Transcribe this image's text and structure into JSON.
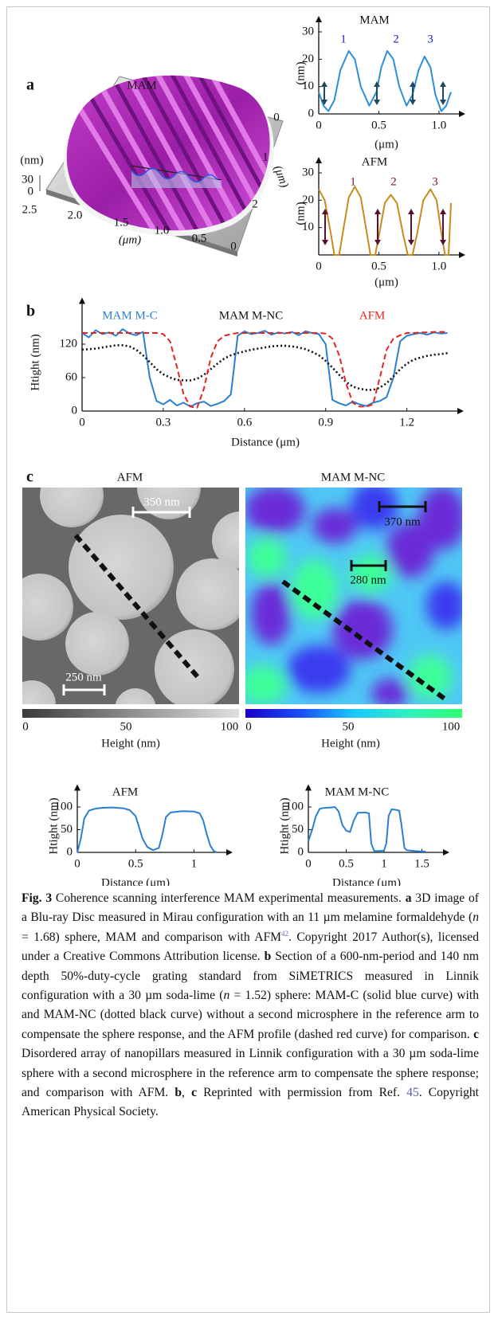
{
  "panel_labels": [
    "a",
    "b",
    "c"
  ],
  "panel_a_3d": {
    "title": "MAM",
    "z_label": "(nm)",
    "z_ticks": [
      "30",
      "0"
    ],
    "x_ticks": [
      "2.5",
      "2.0",
      "1.5",
      "1.0",
      "0.5",
      "0"
    ],
    "x_label": "(μm)",
    "y_ticks": [
      "0",
      "1",
      "2"
    ],
    "y_label": "(μm)"
  },
  "chart_data": [
    {
      "type": "line",
      "title": "MAM",
      "x_label": "(μm)",
      "y_label": "(nm)",
      "xlim": [
        0,
        1.1
      ],
      "ylim": [
        0,
        30
      ],
      "xticks": [
        0,
        0.5,
        {
          "value": 1,
          "label": "1.0"
        }
      ],
      "yticks": [
        0,
        10,
        20,
        30
      ],
      "x": [
        0,
        0.04,
        0.08,
        0.13,
        0.18,
        0.25,
        0.3,
        0.35,
        0.42,
        0.48,
        0.52,
        0.57,
        0.62,
        0.67,
        0.73,
        0.78,
        0.83,
        0.88,
        0.93,
        0.97,
        1.02,
        1.06,
        1.1
      ],
      "series": [
        {
          "color": "#2a8fdc",
          "style": "solid",
          "values": [
            8,
            3,
            1,
            5,
            16,
            23,
            20,
            10,
            3,
            8,
            17,
            23,
            20,
            10,
            3,
            7,
            16,
            21,
            17,
            7,
            1,
            3,
            8
          ]
        }
      ],
      "annotations": [
        "1",
        "2",
        "3"
      ],
      "annotation_color": "#1b1bd6"
    },
    {
      "type": "line",
      "title": "AFM",
      "x_label": "(μm)",
      "y_label": "(nm)",
      "xlim": [
        0,
        1.1
      ],
      "ylim": [
        0,
        30
      ],
      "xticks": [
        0,
        0.5,
        {
          "value": 1,
          "label": "1.0"
        }
      ],
      "yticks": [
        10,
        20,
        30
      ],
      "x": [
        0,
        0.05,
        0.1,
        0.13,
        0.17,
        0.2,
        0.25,
        0.3,
        0.35,
        0.4,
        0.43,
        0.47,
        0.5,
        0.55,
        0.6,
        0.65,
        0.7,
        0.74,
        0.78,
        0.82,
        0.87,
        0.93,
        0.98,
        1.02,
        1.05,
        1.08,
        1.1
      ],
      "series": [
        {
          "color": "#c98a1c",
          "style": "solid",
          "values": [
            24,
            20,
            8,
            0,
            0,
            8,
            21,
            25,
            21,
            8,
            0,
            0,
            7,
            19,
            22,
            19,
            8,
            0,
            0,
            8,
            20,
            24,
            20,
            8,
            0,
            0,
            19
          ]
        }
      ],
      "annotations": [
        "1",
        "2",
        "3"
      ],
      "annotation_color": "#7a1040"
    },
    {
      "type": "line",
      "x_label": "Distance (μm)",
      "y_label": "Htight (nm)",
      "xlim": [
        0,
        1.36
      ],
      "ylim": [
        0,
        175
      ],
      "xticks": [
        0,
        0.3,
        0.6,
        0.9,
        1.2
      ],
      "yticks": [
        0,
        60,
        120
      ],
      "x": [
        0,
        0.025,
        0.05,
        0.075,
        0.1,
        0.125,
        0.15,
        0.175,
        0.2,
        0.225,
        0.25,
        0.275,
        0.3,
        0.325,
        0.35,
        0.375,
        0.4,
        0.425,
        0.45,
        0.475,
        0.5,
        0.525,
        0.55,
        0.575,
        0.6,
        0.625,
        0.65,
        0.675,
        0.7,
        0.725,
        0.75,
        0.775,
        0.8,
        0.825,
        0.85,
        0.875,
        0.9,
        0.925,
        0.95,
        0.975,
        1.0,
        1.025,
        1.05,
        1.075,
        1.1,
        1.125,
        1.15,
        1.175,
        1.2,
        1.225,
        1.25,
        1.275,
        1.3,
        1.325,
        1.35
      ],
      "series": [
        {
          "name": "MAM M-C",
          "color": "#2a7fd0",
          "style": "solid",
          "values": [
            140,
            132,
            145,
            138,
            141,
            135,
            147,
            139,
            136,
            142,
            60,
            18,
            12,
            20,
            10,
            15,
            8,
            14,
            17,
            9,
            13,
            18,
            30,
            135,
            143,
            138,
            140,
            144,
            137,
            141,
            139,
            142,
            136,
            143,
            140,
            138,
            120,
            20,
            14,
            10,
            17,
            12,
            9,
            15,
            18,
            25,
            60,
            125,
            135,
            138,
            140,
            137,
            141,
            139,
            140
          ]
        },
        {
          "name": "MAM M-NC",
          "color": "#111111",
          "style": "dotted",
          "values": [
            110,
            111,
            112,
            114,
            116,
            118,
            118,
            116,
            110,
            100,
            88,
            75,
            66,
            60,
            56,
            55,
            55,
            58,
            65,
            75,
            85,
            94,
            100,
            104,
            107,
            110,
            112,
            114,
            116,
            117,
            117,
            116,
            114,
            111,
            106,
            100,
            90,
            78,
            65,
            52,
            44,
            40,
            38,
            38,
            42,
            50,
            62,
            75,
            85,
            92,
            96,
            99,
            101,
            102,
            104
          ]
        },
        {
          "name": "AFM",
          "color": "#e8231f",
          "style": "dashed",
          "values": [
            140,
            140,
            140,
            140,
            140,
            140,
            140,
            140,
            140,
            140,
            140,
            140,
            138,
            125,
            80,
            30,
            8,
            6,
            40,
            95,
            125,
            135,
            138,
            140,
            140,
            140,
            140,
            140,
            140,
            140,
            140,
            140,
            140,
            140,
            140,
            140,
            139,
            130,
            100,
            50,
            15,
            8,
            8,
            12,
            60,
            110,
            130,
            136,
            140,
            140,
            141,
            141,
            142,
            142,
            142
          ]
        }
      ]
    },
    {
      "type": "line",
      "title": "AFM",
      "x_label": "Distance (μm)",
      "y_label": "Htight (nm)",
      "xlim": [
        0,
        1.25
      ],
      "ylim": [
        0,
        115
      ],
      "xticks": [
        0,
        0.5,
        1
      ],
      "yticks": [
        0,
        50,
        100
      ],
      "x": [
        0,
        0.03,
        0.06,
        0.1,
        0.15,
        0.2,
        0.3,
        0.4,
        0.45,
        0.5,
        0.53,
        0.56,
        0.6,
        0.65,
        0.7,
        0.73,
        0.76,
        0.8,
        0.9,
        1.0,
        1.05,
        1.08,
        1.11,
        1.14,
        1.17,
        1.2
      ],
      "series": [
        {
          "color": "#2a7fd0",
          "style": "solid",
          "values": [
            0,
            30,
            75,
            92,
            96,
            98,
            99,
            97,
            93,
            80,
            55,
            30,
            12,
            5,
            10,
            40,
            78,
            88,
            91,
            90,
            86,
            70,
            40,
            15,
            3,
            0
          ]
        }
      ]
    },
    {
      "type": "line",
      "title": "MAM M-NC",
      "x_label": "Distance (μm)",
      "y_label": "Htight (nm)",
      "xlim": [
        0,
        1.6
      ],
      "ylim": [
        0,
        115
      ],
      "xticks": [
        0,
        0.5,
        1,
        1.5
      ],
      "yticks": [
        0,
        50,
        100
      ],
      "x": [
        0,
        0.05,
        0.1,
        0.15,
        0.2,
        0.3,
        0.35,
        0.4,
        0.45,
        0.5,
        0.55,
        0.6,
        0.65,
        0.75,
        0.8,
        0.83,
        0.87,
        0.95,
        1.0,
        1.03,
        1.06,
        1.1,
        1.15,
        1.2,
        1.23,
        1.27,
        1.3,
        1.4,
        1.5,
        1.55
      ],
      "series": [
        {
          "color": "#2a7fd0",
          "style": "solid",
          "values": [
            25,
            50,
            80,
            96,
            98,
            99,
            100,
            90,
            60,
            48,
            45,
            70,
            87,
            88,
            86,
            20,
            3,
            3,
            4,
            20,
            80,
            95,
            94,
            92,
            60,
            10,
            5,
            3,
            2,
            2
          ]
        }
      ]
    }
  ],
  "panel_c": {
    "images": [
      {
        "title": "AFM",
        "scale_bars": [
          "350 nm",
          "250 nm"
        ],
        "colorbar": {
          "ticks": [
            "0",
            "50",
            "100"
          ],
          "label": "Height (nm)"
        }
      },
      {
        "title": "MAM M-NC",
        "scale_bars": [
          "370 nm",
          "280 nm"
        ],
        "colorbar": {
          "ticks": [
            "0",
            "50",
            "100"
          ],
          "label": "Height (nm)"
        }
      }
    ]
  },
  "caption": [
    {
      "text": "Fig. 3",
      "style": "bold"
    },
    {
      "text": " Coherence scanning interference MAM experimental measurements. "
    },
    {
      "text": "a",
      "style": "bold"
    },
    {
      "text": " 3D image of a Blu-ray Disc measured in Mirau configuration with an 11 µm melamine formaldehyde ("
    },
    {
      "text": "n",
      "style": "italic"
    },
    {
      "text": " = 1.68) sphere, MAM and comparison with AFM"
    },
    {
      "text": "42",
      "style": "sup"
    },
    {
      "text": ". Copyright 2017 Author(s), licensed under a Creative Commons Attribution license. "
    },
    {
      "text": "b",
      "style": "bold"
    },
    {
      "text": " Section of a 600-nm-period and 140 nm depth 50%-duty-cycle grating standard from SiMETRICS measured in Linnik configuration with a 30 µm soda-lime ("
    },
    {
      "text": "n",
      "style": "italic"
    },
    {
      "text": " = 1.52) sphere: MAM-C (solid blue curve) with and MAM-NC (dotted black curve) without a second microsphere in the reference arm to compensate the sphere response, and the AFM profile (dashed red curve) for comparison. "
    },
    {
      "text": "c",
      "style": "bold"
    },
    {
      "text": " Disordered array of nanopillars measured in Linnik configuration with a 30 µm soda-lime sphere with a second microsphere in the reference arm to compensate the sphere response; and comparison with AFM. "
    },
    {
      "text": "b",
      "style": "bold"
    },
    {
      "text": ", "
    },
    {
      "text": "c",
      "style": "bold"
    },
    {
      "text": " Reprinted with permission from Ref. "
    },
    {
      "text": "45",
      "style": "ref"
    },
    {
      "text": ". Copyright American Physical Society."
    }
  ]
}
